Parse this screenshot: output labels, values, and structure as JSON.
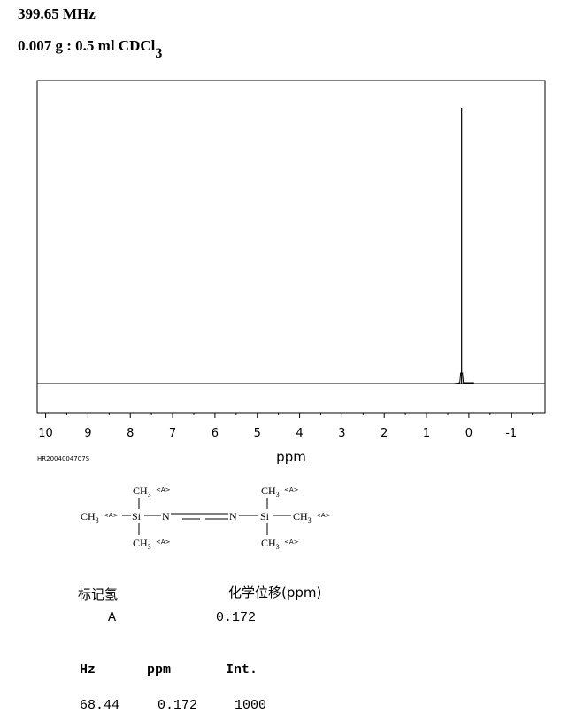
{
  "header": {
    "frequency": "399.65 MHz",
    "sample_main": "0.007 g : 0.5 ml CDCl",
    "sample_sub": "3"
  },
  "chart_data": {
    "type": "line",
    "xlabel": "ppm",
    "xlim": [
      10.2,
      -1.8
    ],
    "x_ticks": [
      10,
      9,
      8,
      7,
      6,
      5,
      4,
      3,
      2,
      1,
      0,
      -1
    ],
    "x_tick_labels": [
      "10",
      "9",
      "8",
      "7",
      "6",
      "5",
      "4",
      "3",
      "2",
      "1",
      "0",
      "-1"
    ],
    "peaks": [
      {
        "x": 0.172,
        "intensity": 1000
      }
    ],
    "grid": false,
    "code": "HR2004004707S"
  },
  "structure": {
    "label_ch3": "CH",
    "label_ch3_sub": "3",
    "label_si": "Si",
    "label_n": "N",
    "tag": "<A>"
  },
  "assignment": {
    "col_label_header": "标记氢",
    "col_shift_header": "化学位移(ppm)",
    "rows": [
      {
        "label": "A",
        "shift": "0.172"
      }
    ]
  },
  "peak_table": {
    "headers": [
      "Hz",
      "ppm",
      "Int."
    ],
    "rows": [
      {
        "hz": "68.44",
        "ppm": "0.172",
        "int": "1000"
      }
    ]
  }
}
